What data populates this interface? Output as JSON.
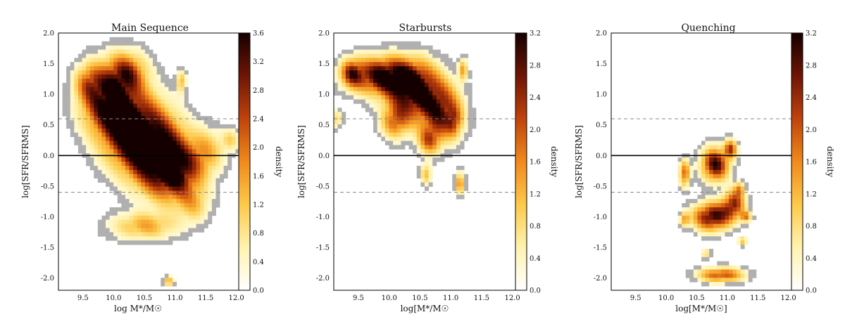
{
  "figure": {
    "colormap": [
      "#ffffff",
      "#fff3b0",
      "#fdc94a",
      "#f08a1c",
      "#c0430c",
      "#6e1506",
      "#150000"
    ],
    "contour_color": "#b0b0b0",
    "mean_line_color": "#000000",
    "dashed_line_color": "#888888"
  },
  "chart_data": [
    {
      "type": "heatmap",
      "title": "Main Sequence",
      "xlabel": "log M*/M☉",
      "ylabel": "log[SFR/SFRMS]",
      "xlim": [
        9.1,
        12.05
      ],
      "ylim": [
        -2.2,
        2.0
      ],
      "xticks": [
        "9.5",
        "10.0",
        "10.5",
        "11.0",
        "11.5",
        "12.0"
      ],
      "xtick_values": [
        9.5,
        10.0,
        10.5,
        11.0,
        11.5,
        12.0
      ],
      "yticks": [
        "2.0",
        "1.5",
        "1.0",
        "0.5",
        "0.0",
        "-0.5",
        "-1.0",
        "-1.5",
        "-2.0"
      ],
      "ytick_values": [
        2.0,
        1.5,
        1.0,
        0.5,
        0.0,
        -0.5,
        -1.0,
        -1.5,
        -2.0
      ],
      "hlines": {
        "solid": 0.0,
        "dashed": [
          0.6,
          -0.6
        ]
      },
      "colorbar": {
        "label": "density",
        "range": [
          0.0,
          3.6
        ],
        "ticks": [
          "3.6",
          "3.2",
          "2.8",
          "2.4",
          "2.0",
          "1.6",
          "1.2",
          "0.8",
          "0.4",
          "0.0"
        ],
        "tick_values": [
          3.6,
          3.2,
          2.8,
          2.4,
          2.0,
          1.6,
          1.2,
          0.8,
          0.4,
          0.0
        ]
      },
      "blobs": [
        {
          "x": 9.9,
          "y": 0.9,
          "sx": 0.28,
          "sy": 0.35,
          "w": 3.0
        },
        {
          "x": 10.3,
          "y": 0.45,
          "sx": 0.33,
          "sy": 0.4,
          "w": 3.4
        },
        {
          "x": 10.7,
          "y": 0.05,
          "sx": 0.33,
          "sy": 0.38,
          "w": 3.5
        },
        {
          "x": 11.0,
          "y": -0.3,
          "sx": 0.28,
          "sy": 0.3,
          "w": 2.8
        },
        {
          "x": 10.2,
          "y": 1.35,
          "sx": 0.22,
          "sy": 0.22,
          "w": 2.2
        },
        {
          "x": 9.6,
          "y": 1.2,
          "sx": 0.15,
          "sy": 0.2,
          "w": 1.4
        },
        {
          "x": 11.5,
          "y": 0.05,
          "sx": 0.2,
          "sy": 0.25,
          "w": 1.2
        },
        {
          "x": 11.9,
          "y": 0.25,
          "sx": 0.1,
          "sy": 0.12,
          "w": 0.9
        },
        {
          "x": 10.5,
          "y": -1.15,
          "sx": 0.35,
          "sy": 0.15,
          "w": 1.4
        },
        {
          "x": 11.3,
          "y": -0.8,
          "sx": 0.18,
          "sy": 0.2,
          "w": 1.0
        },
        {
          "x": 11.1,
          "y": 1.2,
          "sx": 0.05,
          "sy": 0.12,
          "w": 1.4
        },
        {
          "x": 10.9,
          "y": -2.05,
          "sx": 0.05,
          "sy": 0.05,
          "w": 1.8
        }
      ]
    },
    {
      "type": "heatmap",
      "title": "Starbursts",
      "xlabel": "log[M*/M☉",
      "ylabel": "log[SFR/SFRMS]",
      "xlim": [
        9.1,
        12.05
      ],
      "ylim": [
        -2.2,
        2.0
      ],
      "xticks": [
        "9.5",
        "10.0",
        "10.5",
        "11.0",
        "11.5",
        "12.0"
      ],
      "xtick_values": [
        9.5,
        10.0,
        10.5,
        11.0,
        11.5,
        12.0
      ],
      "yticks": [
        "2.0",
        "1.5",
        "1.0",
        "0.5",
        "0.0",
        "-0.5",
        "-1.0",
        "-1.5",
        "-2.0"
      ],
      "ytick_values": [
        2.0,
        1.5,
        1.0,
        0.5,
        0.0,
        -0.5,
        -1.0,
        -1.5,
        -2.0
      ],
      "hlines": {
        "solid": 0.0,
        "dashed": [
          0.6,
          -0.6
        ]
      },
      "colorbar": {
        "label": "density",
        "range": [
          0.0,
          3.2
        ],
        "ticks": [
          "3.2",
          "2.8",
          "2.4",
          "2.0",
          "1.6",
          "1.2",
          "0.8",
          "0.4",
          "0.0"
        ],
        "tick_values": [
          3.2,
          2.8,
          2.4,
          2.0,
          1.6,
          1.2,
          0.8,
          0.4,
          0.0
        ]
      },
      "blobs": [
        {
          "x": 9.9,
          "y": 1.3,
          "sx": 0.35,
          "sy": 0.2,
          "w": 3.0
        },
        {
          "x": 10.4,
          "y": 1.05,
          "sx": 0.28,
          "sy": 0.3,
          "w": 3.2
        },
        {
          "x": 10.85,
          "y": 0.7,
          "sx": 0.22,
          "sy": 0.3,
          "w": 2.4
        },
        {
          "x": 9.4,
          "y": 1.35,
          "sx": 0.12,
          "sy": 0.15,
          "w": 1.8
        },
        {
          "x": 10.1,
          "y": 0.55,
          "sx": 0.15,
          "sy": 0.18,
          "w": 1.6
        },
        {
          "x": 10.65,
          "y": 0.25,
          "sx": 0.12,
          "sy": 0.15,
          "w": 1.6
        },
        {
          "x": 11.05,
          "y": 0.55,
          "sx": 0.08,
          "sy": 0.15,
          "w": 1.2
        },
        {
          "x": 11.2,
          "y": 1.4,
          "sx": 0.05,
          "sy": 0.12,
          "w": 1.2
        },
        {
          "x": 10.6,
          "y": -0.3,
          "sx": 0.06,
          "sy": 0.12,
          "w": 1.1
        },
        {
          "x": 11.15,
          "y": -0.45,
          "sx": 0.05,
          "sy": 0.12,
          "w": 1.5
        },
        {
          "x": 9.15,
          "y": 0.6,
          "sx": 0.06,
          "sy": 0.1,
          "w": 0.9
        }
      ]
    },
    {
      "type": "heatmap",
      "title": "Quenching",
      "xlabel": "log[M*/M☉]",
      "ylabel": "log[SFR/SFRMS]",
      "xlim": [
        9.1,
        12.05
      ],
      "ylim": [
        -2.2,
        2.0
      ],
      "xticks": [
        "9.5",
        "10.0",
        "10.5",
        "11.0",
        "11.5",
        "12.0"
      ],
      "xtick_values": [
        9.5,
        10.0,
        10.5,
        11.0,
        11.5,
        12.0
      ],
      "yticks": [
        "2.0",
        "1.5",
        "1.0",
        "0.5",
        "0.0",
        "-0.5",
        "-1.0",
        "-1.5",
        "-2.0"
      ],
      "ytick_values": [
        2.0,
        1.5,
        1.0,
        0.5,
        0.0,
        -0.5,
        -1.0,
        -1.5,
        -2.0
      ],
      "hlines": {
        "solid": 0.0,
        "dashed": [
          0.6,
          -0.6
        ]
      },
      "colorbar": {
        "label": "density",
        "range": [
          0.0,
          3.2
        ],
        "ticks": [
          "3.2",
          "2.8",
          "2.4",
          "2.0",
          "1.6",
          "1.2",
          "0.8",
          "0.4",
          "0.0"
        ],
        "tick_values": [
          3.2,
          2.8,
          2.4,
          2.0,
          1.6,
          1.2,
          0.8,
          0.4,
          0.0
        ]
      },
      "blobs": [
        {
          "x": 10.8,
          "y": -0.15,
          "sx": 0.15,
          "sy": 0.18,
          "w": 2.8
        },
        {
          "x": 11.05,
          "y": 0.1,
          "sx": 0.07,
          "sy": 0.1,
          "w": 2.0
        },
        {
          "x": 10.3,
          "y": -0.3,
          "sx": 0.06,
          "sy": 0.15,
          "w": 1.8
        },
        {
          "x": 10.75,
          "y": -1.0,
          "sx": 0.2,
          "sy": 0.15,
          "w": 3.0
        },
        {
          "x": 11.1,
          "y": -0.8,
          "sx": 0.12,
          "sy": 0.15,
          "w": 2.4
        },
        {
          "x": 11.3,
          "y": -1.0,
          "sx": 0.06,
          "sy": 0.06,
          "w": 1.5
        },
        {
          "x": 10.3,
          "y": -1.05,
          "sx": 0.05,
          "sy": 0.08,
          "w": 1.4
        },
        {
          "x": 10.9,
          "y": -1.95,
          "sx": 0.25,
          "sy": 0.08,
          "w": 2.0
        },
        {
          "x": 11.2,
          "y": -0.55,
          "sx": 0.06,
          "sy": 0.08,
          "w": 1.2
        },
        {
          "x": 11.25,
          "y": -1.4,
          "sx": 0.05,
          "sy": 0.05,
          "w": 1.0
        },
        {
          "x": 10.65,
          "y": -1.6,
          "sx": 0.05,
          "sy": 0.05,
          "w": 1.0
        }
      ]
    }
  ]
}
